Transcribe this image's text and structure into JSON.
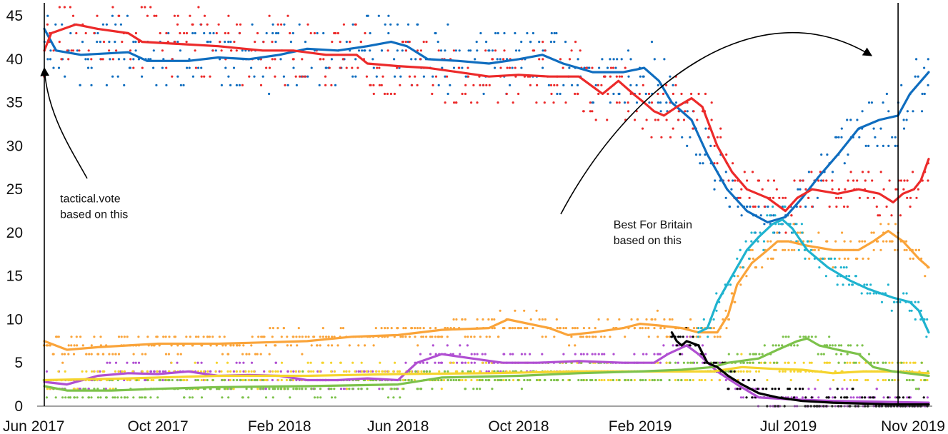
{
  "chart_data": {
    "type": "line",
    "title": "",
    "xlabel": "",
    "ylabel": "",
    "ylim": [
      0,
      46
    ],
    "yticks": [
      0,
      5,
      10,
      15,
      20,
      25,
      30,
      35,
      40,
      45
    ],
    "xlim": [
      "2017-06-08",
      "2019-11-20"
    ],
    "xticks": [
      {
        "date": "2017-06-01",
        "label": "Jun 2017"
      },
      {
        "date": "2017-10-01",
        "label": "Oct 2017"
      },
      {
        "date": "2018-02-01",
        "label": "Feb 2018"
      },
      {
        "date": "2018-06-01",
        "label": "Jun 2018"
      },
      {
        "date": "2018-10-01",
        "label": "Oct 2018"
      },
      {
        "date": "2019-02-01",
        "label": "Feb 2019"
      },
      {
        "date": "2019-07-01",
        "label": "Jul 2019"
      },
      {
        "date": "2019-11-01",
        "label": "Nov 2019"
      }
    ],
    "grid": false,
    "legend": "none",
    "series": [
      {
        "color": "#0f6dbf",
        "points": [
          [
            "2017-06-08",
            43.5
          ],
          [
            "2017-06-20",
            41
          ],
          [
            "2017-07-15",
            40.5
          ],
          [
            "2017-09-01",
            40.8
          ],
          [
            "2017-09-20",
            39.8
          ],
          [
            "2017-11-01",
            39.8
          ],
          [
            "2017-12-01",
            40.2
          ],
          [
            "2018-01-01",
            40
          ],
          [
            "2018-02-01",
            40.5
          ],
          [
            "2018-03-01",
            41.2
          ],
          [
            "2018-04-01",
            41
          ],
          [
            "2018-05-01",
            41.5
          ],
          [
            "2018-05-25",
            42
          ],
          [
            "2018-06-10",
            41.5
          ],
          [
            "2018-07-01",
            40
          ],
          [
            "2018-08-01",
            39.8
          ],
          [
            "2018-09-01",
            39.5
          ],
          [
            "2018-10-01",
            40
          ],
          [
            "2018-10-25",
            40.5
          ],
          [
            "2018-11-15",
            39.5
          ],
          [
            "2018-12-15",
            38.5
          ],
          [
            "2019-01-15",
            38.5
          ],
          [
            "2019-02-05",
            39
          ],
          [
            "2019-02-20",
            37.5
          ],
          [
            "2019-03-05",
            35
          ],
          [
            "2019-03-25",
            33
          ],
          [
            "2019-04-10",
            29
          ],
          [
            "2019-04-30",
            25
          ],
          [
            "2019-05-20",
            22.5
          ],
          [
            "2019-06-10",
            21.2
          ],
          [
            "2019-06-28",
            21.8
          ],
          [
            "2019-07-15",
            24
          ],
          [
            "2019-08-01",
            26.5
          ],
          [
            "2019-08-20",
            29
          ],
          [
            "2019-09-10",
            32
          ],
          [
            "2019-10-01",
            33
          ],
          [
            "2019-10-20",
            33.5
          ],
          [
            "2019-11-01",
            36
          ],
          [
            "2019-11-20",
            38.5
          ]
        ]
      },
      {
        "color": "#ec2a2a",
        "points": [
          [
            "2017-06-08",
            41
          ],
          [
            "2017-06-15",
            43
          ],
          [
            "2017-07-10",
            44
          ],
          [
            "2017-08-01",
            43.5
          ],
          [
            "2017-09-01",
            43
          ],
          [
            "2017-09-15",
            42
          ],
          [
            "2017-10-15",
            41.8
          ],
          [
            "2017-12-01",
            41.5
          ],
          [
            "2018-01-15",
            41
          ],
          [
            "2018-02-15",
            41
          ],
          [
            "2018-03-20",
            40.5
          ],
          [
            "2018-04-20",
            40.5
          ],
          [
            "2018-05-01",
            39.5
          ],
          [
            "2018-06-01",
            39.2
          ],
          [
            "2018-07-01",
            39
          ],
          [
            "2018-08-01",
            38.5
          ],
          [
            "2018-09-01",
            38
          ],
          [
            "2018-10-01",
            38.2
          ],
          [
            "2018-11-01",
            38
          ],
          [
            "2018-12-01",
            38
          ],
          [
            "2018-12-25",
            36
          ],
          [
            "2019-01-10",
            37.5
          ],
          [
            "2019-01-25",
            36
          ],
          [
            "2019-02-05",
            35
          ],
          [
            "2019-02-15",
            34
          ],
          [
            "2019-02-25",
            33.5
          ],
          [
            "2019-03-10",
            34.5
          ],
          [
            "2019-03-25",
            35.5
          ],
          [
            "2019-04-05",
            34.5
          ],
          [
            "2019-04-20",
            30
          ],
          [
            "2019-05-05",
            27
          ],
          [
            "2019-05-20",
            25
          ],
          [
            "2019-06-10",
            24
          ],
          [
            "2019-06-28",
            22.5
          ],
          [
            "2019-07-10",
            24
          ],
          [
            "2019-07-25",
            25
          ],
          [
            "2019-08-20",
            24.5
          ],
          [
            "2019-09-10",
            25
          ],
          [
            "2019-10-01",
            24.5
          ],
          [
            "2019-10-15",
            23.5
          ],
          [
            "2019-10-25",
            24.5
          ],
          [
            "2019-11-05",
            25
          ],
          [
            "2019-11-12",
            26
          ],
          [
            "2019-11-20",
            28.5
          ]
        ]
      },
      {
        "color": "#faa43a",
        "points": [
          [
            "2017-06-08",
            7.5
          ],
          [
            "2017-07-01",
            6.5
          ],
          [
            "2017-08-01",
            6.8
          ],
          [
            "2017-10-01",
            7.2
          ],
          [
            "2017-12-01",
            7.2
          ],
          [
            "2018-01-01",
            7.3
          ],
          [
            "2018-03-01",
            7.5
          ],
          [
            "2018-04-15",
            8
          ],
          [
            "2018-06-01",
            8.2
          ],
          [
            "2018-07-15",
            8.8
          ],
          [
            "2018-09-01",
            9
          ],
          [
            "2018-09-20",
            10
          ],
          [
            "2018-11-01",
            9
          ],
          [
            "2018-11-20",
            8.2
          ],
          [
            "2018-12-15",
            8.5
          ],
          [
            "2019-01-15",
            9
          ],
          [
            "2019-02-01",
            9.5
          ],
          [
            "2019-02-20",
            9.3
          ],
          [
            "2019-03-15",
            9
          ],
          [
            "2019-04-01",
            8.5
          ],
          [
            "2019-04-20",
            8.5
          ],
          [
            "2019-05-01",
            10.5
          ],
          [
            "2019-05-10",
            14
          ],
          [
            "2019-05-25",
            16.5
          ],
          [
            "2019-06-10",
            18
          ],
          [
            "2019-06-20",
            19
          ],
          [
            "2019-07-01",
            19
          ],
          [
            "2019-07-20",
            18.5
          ],
          [
            "2019-08-15",
            18
          ],
          [
            "2019-09-10",
            18
          ],
          [
            "2019-09-25",
            19
          ],
          [
            "2019-10-10",
            20.2
          ],
          [
            "2019-10-25",
            19
          ],
          [
            "2019-11-10",
            17
          ],
          [
            "2019-11-20",
            16
          ]
        ]
      },
      {
        "color": "#b04fd2",
        "points": [
          [
            "2017-06-08",
            2.8
          ],
          [
            "2017-07-01",
            2.5
          ],
          [
            "2017-08-01",
            3.5
          ],
          [
            "2017-09-01",
            3.8
          ],
          [
            "2017-10-01",
            3.7
          ],
          [
            "2017-11-01",
            4
          ],
          [
            "2017-12-01",
            3.5
          ],
          [
            "2018-01-01",
            3.6
          ],
          [
            "2018-02-01",
            3.5
          ],
          [
            "2018-03-01",
            3
          ],
          [
            "2018-04-01",
            3
          ],
          [
            "2018-05-01",
            3.2
          ],
          [
            "2018-06-01",
            3
          ],
          [
            "2018-06-20",
            5
          ],
          [
            "2018-07-15",
            6
          ],
          [
            "2018-08-15",
            5.5
          ],
          [
            "2018-09-15",
            5
          ],
          [
            "2018-10-20",
            5
          ],
          [
            "2018-12-01",
            5.2
          ],
          [
            "2019-01-15",
            5
          ],
          [
            "2019-02-15",
            5
          ],
          [
            "2019-03-01",
            6
          ],
          [
            "2019-03-20",
            7
          ],
          [
            "2019-04-01",
            6
          ],
          [
            "2019-04-20",
            4
          ],
          [
            "2019-05-10",
            2.5
          ],
          [
            "2019-06-01",
            1
          ],
          [
            "2019-07-01",
            0.8
          ],
          [
            "2019-08-15",
            0.6
          ],
          [
            "2019-10-01",
            0.5
          ],
          [
            "2019-11-20",
            0.4
          ]
        ]
      },
      {
        "color": "#f5d42e",
        "points": [
          [
            "2017-06-08",
            3
          ],
          [
            "2017-09-01",
            3.2
          ],
          [
            "2017-12-01",
            3.5
          ],
          [
            "2018-03-01",
            3.5
          ],
          [
            "2018-06-01",
            3.7
          ],
          [
            "2018-09-01",
            3.8
          ],
          [
            "2018-12-01",
            4
          ],
          [
            "2019-03-01",
            4
          ],
          [
            "2019-04-15",
            4
          ],
          [
            "2019-05-15",
            4.5
          ],
          [
            "2019-06-15",
            4.3
          ],
          [
            "2019-07-15",
            4.2
          ],
          [
            "2019-08-15",
            3.8
          ],
          [
            "2019-09-15",
            4
          ],
          [
            "2019-10-15",
            4
          ],
          [
            "2019-11-20",
            3.8
          ]
        ]
      },
      {
        "color": "#7dc24b",
        "points": [
          [
            "2017-06-08",
            2.3
          ],
          [
            "2017-07-01",
            1.8
          ],
          [
            "2017-08-15",
            1.8
          ],
          [
            "2017-10-01",
            2
          ],
          [
            "2017-12-01",
            2.2
          ],
          [
            "2018-03-01",
            2.3
          ],
          [
            "2018-06-01",
            2.5
          ],
          [
            "2018-07-15",
            3.3
          ],
          [
            "2018-10-01",
            3.5
          ],
          [
            "2018-12-01",
            3.8
          ],
          [
            "2019-02-01",
            4
          ],
          [
            "2019-03-15",
            4.2
          ],
          [
            "2019-04-15",
            4.5
          ],
          [
            "2019-05-01",
            5
          ],
          [
            "2019-06-01",
            5.5
          ],
          [
            "2019-06-20",
            6.5
          ],
          [
            "2019-07-10",
            7.5
          ],
          [
            "2019-07-20",
            7.8
          ],
          [
            "2019-08-01",
            7
          ],
          [
            "2019-08-20",
            6.5
          ],
          [
            "2019-09-10",
            6
          ],
          [
            "2019-09-25",
            4.5
          ],
          [
            "2019-10-15",
            4
          ],
          [
            "2019-11-20",
            3.5
          ]
        ]
      },
      {
        "color": "#1fb3cf",
        "points": [
          [
            "2019-04-01",
            8.5
          ],
          [
            "2019-04-10",
            9
          ],
          [
            "2019-04-20",
            12
          ],
          [
            "2019-05-05",
            15
          ],
          [
            "2019-05-20",
            18
          ],
          [
            "2019-06-01",
            19.5
          ],
          [
            "2019-06-15",
            21
          ],
          [
            "2019-06-25",
            21.5
          ],
          [
            "2019-07-05",
            20.5
          ],
          [
            "2019-07-20",
            18
          ],
          [
            "2019-08-10",
            16
          ],
          [
            "2019-09-01",
            14.5
          ],
          [
            "2019-09-20",
            13.5
          ],
          [
            "2019-10-15",
            12.5
          ],
          [
            "2019-11-01",
            12
          ],
          [
            "2019-11-10",
            11
          ],
          [
            "2019-11-20",
            8.5
          ]
        ]
      },
      {
        "color": "#000000",
        "points": [
          [
            "2019-03-05",
            8.5
          ],
          [
            "2019-03-10",
            7.5
          ],
          [
            "2019-03-15",
            7
          ],
          [
            "2019-03-20",
            7.5
          ],
          [
            "2019-04-01",
            7
          ],
          [
            "2019-04-10",
            5
          ],
          [
            "2019-04-20",
            4.5
          ],
          [
            "2019-05-01",
            3.5
          ],
          [
            "2019-05-15",
            2.5
          ],
          [
            "2019-06-01",
            1.5
          ],
          [
            "2019-06-20",
            1
          ],
          [
            "2019-07-15",
            0.6
          ],
          [
            "2019-08-15",
            0.4
          ],
          [
            "2019-09-15",
            0.3
          ],
          [
            "2019-10-15",
            0.2
          ],
          [
            "2019-11-20",
            0.2
          ]
        ]
      }
    ],
    "annotations": [
      {
        "lines": [
          "tactical.vote",
          "based on this"
        ],
        "date": "2017-06-24",
        "value": 23.5
      },
      {
        "lines": [
          "Best For Britain",
          "based on this"
        ],
        "date": "2019-01-05",
        "value": 20.5
      }
    ],
    "vlines": [
      "2017-06-08",
      "2019-10-20"
    ]
  }
}
